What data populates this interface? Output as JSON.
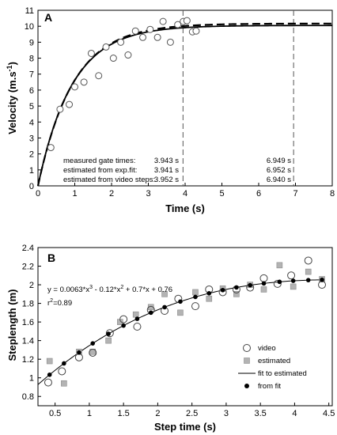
{
  "chart_data": [
    {
      "type": "scatter",
      "panel_label": "A",
      "xlabel": "Time (s)",
      "ylabel": "Velocity (m.s",
      "ylabel_sup": "-1",
      "ylabel_end": ")",
      "xlim": [
        0,
        8
      ],
      "ylim": [
        0,
        11
      ],
      "xticks": [
        0,
        1,
        2,
        3,
        4,
        5,
        6,
        7,
        8
      ],
      "yticks": [
        0,
        1,
        2,
        3,
        4,
        5,
        6,
        7,
        8,
        9,
        10,
        11
      ],
      "grid": false,
      "series": [
        {
          "marker": "open-circle",
          "x": [
            0.35,
            0.6,
            0.85,
            1.0,
            1.25,
            1.45,
            1.65,
            1.85,
            2.05,
            2.25,
            2.45,
            2.65,
            2.85,
            3.05,
            3.25,
            3.4,
            3.6,
            3.8,
            3.95,
            4.05,
            4.2,
            4.3
          ],
          "y": [
            2.4,
            4.8,
            5.1,
            6.2,
            6.5,
            8.3,
            6.9,
            8.7,
            8.0,
            9.0,
            8.2,
            9.7,
            9.3,
            9.8,
            9.3,
            10.3,
            9.0,
            10.1,
            10.3,
            10.35,
            9.65,
            9.7
          ]
        }
      ],
      "fits": [
        {
          "style": "solid",
          "vmax": 10.05,
          "tau": 0.93
        },
        {
          "style": "dashed",
          "vmax": 10.17,
          "tau": 0.95
        }
      ],
      "vlines": [
        3.943,
        6.949
      ],
      "annotations": {
        "row1_label": "measured gate times:",
        "row1_v1": "3.943 s",
        "row1_v2": "6.949 s",
        "row2_label": "estimated from exp.fit:",
        "row2_v1": "3.941 s",
        "row2_v2": "6.952 s",
        "row3_label": "estimated from video steps:",
        "row3_v1": "3.952 s",
        "row3_v2": "6.940 s"
      }
    },
    {
      "type": "scatter",
      "panel_label": "B",
      "xlabel": "Step time (s)",
      "ylabel": "Steplength (m)",
      "xlim": [
        0.25,
        4.55
      ],
      "ylim": [
        0.7,
        2.4
      ],
      "xticks": [
        0.5,
        1,
        1.5,
        2,
        2.5,
        3,
        3.5,
        4,
        4.5
      ],
      "yticks": [
        0.8,
        1,
        1.2,
        1.4,
        1.6,
        1.8,
        2,
        2.2,
        2.4
      ],
      "grid": false,
      "equation_parts": [
        "y = 0.0063*x",
        "3",
        " - 0.12*x",
        "2",
        " + 0.7*x + 0.76"
      ],
      "r2_parts": [
        "r",
        "2",
        "=0.89"
      ],
      "legend": {
        "video": "video",
        "estimated": "estimated",
        "fit": "fit to estimated",
        "from_fit": "from fit",
        "position": "bottom-right"
      },
      "poly_coeffs": [
        0.76,
        0.7,
        -0.12,
        0.0063
      ],
      "video": {
        "x": [
          0.4,
          0.6,
          0.85,
          1.05,
          1.3,
          1.5,
          1.7,
          1.9,
          2.1,
          2.3,
          2.55,
          2.75,
          2.95,
          3.15,
          3.35,
          3.55,
          3.75,
          3.95,
          4.2,
          4.4
        ],
        "y": [
          0.95,
          1.07,
          1.22,
          1.27,
          1.48,
          1.63,
          1.55,
          1.73,
          1.72,
          1.85,
          1.77,
          1.95,
          1.92,
          1.95,
          1.97,
          2.07,
          2.01,
          2.1,
          2.26,
          2.0
        ]
      },
      "estimated": {
        "x": [
          0.42,
          0.63,
          0.85,
          1.05,
          1.28,
          1.45,
          1.68,
          1.9,
          2.1,
          2.33,
          2.55,
          2.75,
          2.95,
          3.15,
          3.35,
          3.55,
          3.78,
          3.98,
          4.2,
          4.4
        ],
        "y": [
          1.18,
          0.94,
          1.28,
          1.28,
          1.4,
          1.6,
          1.68,
          1.76,
          1.9,
          1.7,
          1.92,
          1.85,
          1.96,
          1.9,
          2.0,
          1.95,
          2.21,
          1.98,
          2.14,
          2.06
        ]
      },
      "from_fit": {
        "x": [
          0.42,
          0.63,
          0.85,
          1.05,
          1.28,
          1.5,
          1.7,
          1.9,
          2.1,
          2.33,
          2.55,
          2.75,
          2.95,
          3.15,
          3.35,
          3.55,
          3.78,
          3.98,
          4.2,
          4.4
        ]
      }
    }
  ]
}
